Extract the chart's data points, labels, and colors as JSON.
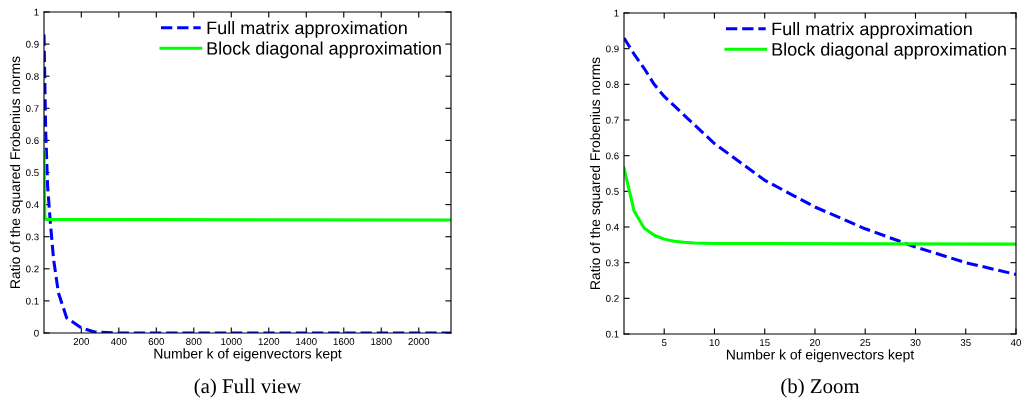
{
  "chart_data": [
    {
      "type": "line",
      "xlabel": "Number k of eigenvectors kept",
      "ylabel": "Ratio of the squared Frobenius norms",
      "annotations": [
        "(a) Full view"
      ],
      "xlim": [
        1,
        2172
      ],
      "ylim": [
        0,
        1
      ],
      "xticks": [
        200,
        400,
        600,
        800,
        1000,
        1200,
        1400,
        1600,
        1800,
        2000
      ],
      "yticks": [
        0,
        0.1,
        0.2,
        0.3,
        0.4,
        0.5,
        0.6,
        0.7,
        0.8,
        0.9,
        1
      ],
      "grid": false,
      "legend": "top right",
      "series": [
        {
          "name": "Full matrix approximation",
          "color": "#0000ff",
          "line_style": "dashed",
          "x": [
            1,
            10,
            20,
            34,
            52,
            78,
            122,
            200,
            270,
            400,
            2172
          ],
          "values": [
            0.93,
            0.63,
            0.46,
            0.35,
            0.23,
            0.125,
            0.047,
            0.016,
            0.003,
            0,
            0
          ]
        },
        {
          "name": "Block diagonal approximation",
          "color": "#00ff00",
          "line_style": "solid",
          "x": [
            1,
            5,
            10,
            2172
          ],
          "values": [
            0.565,
            0.366,
            0.354,
            0.352
          ]
        }
      ]
    },
    {
      "type": "line",
      "xlabel": "Number k of eigenvectors kept",
      "ylabel": "Ratio of the squared Frobenius norms",
      "annotations": [
        "(b) Zoom"
      ],
      "xlim": [
        1,
        40
      ],
      "ylim": [
        0.1,
        1
      ],
      "xticks": [
        5,
        10,
        15,
        20,
        25,
        30,
        35,
        40
      ],
      "yticks": [
        0.1,
        0.2,
        0.3,
        0.4,
        0.5,
        0.6,
        0.7,
        0.8,
        0.9,
        1
      ],
      "grid": false,
      "legend": "top right",
      "series": [
        {
          "name": "Full matrix approximation",
          "color": "#0000ff",
          "line_style": "dashed",
          "x": [
            1,
            2,
            3,
            4,
            5,
            10,
            15,
            20,
            25,
            30,
            35,
            40
          ],
          "values": [
            0.93,
            0.885,
            0.845,
            0.8,
            0.766,
            0.634,
            0.531,
            0.456,
            0.395,
            0.344,
            0.3,
            0.267
          ]
        },
        {
          "name": "Block diagonal approximation",
          "color": "#00ff00",
          "line_style": "solid",
          "x": [
            1,
            2,
            3,
            4,
            5,
            6,
            7,
            8,
            10,
            40
          ],
          "values": [
            0.565,
            0.445,
            0.397,
            0.377,
            0.366,
            0.36,
            0.357,
            0.355,
            0.354,
            0.352
          ]
        }
      ]
    }
  ]
}
